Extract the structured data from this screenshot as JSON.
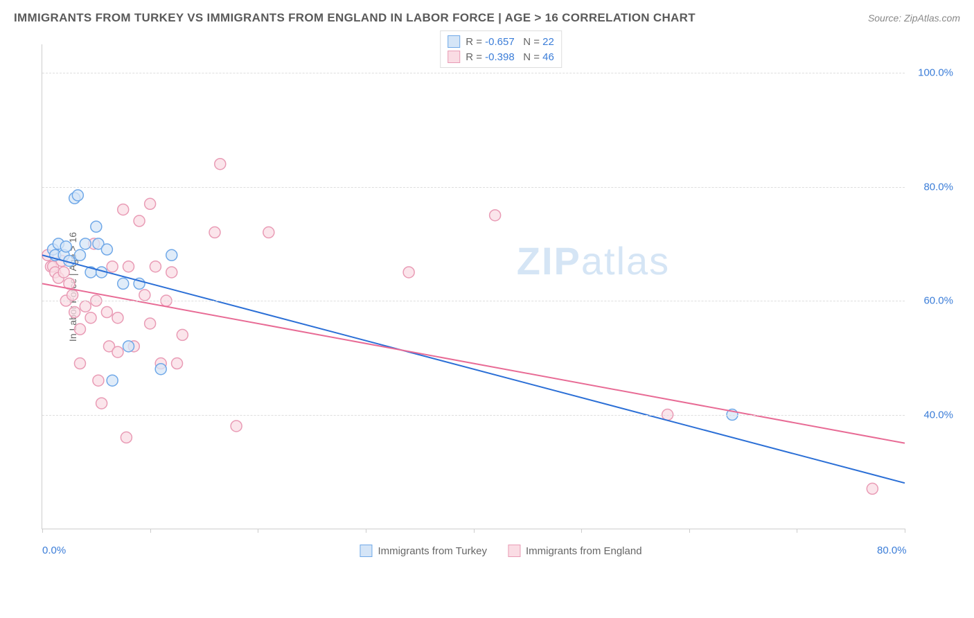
{
  "title": "IMMIGRANTS FROM TURKEY VS IMMIGRANTS FROM ENGLAND IN LABOR FORCE | AGE > 16 CORRELATION CHART",
  "source": "Source: ZipAtlas.com",
  "ylabel": "In Labor Force | Age > 16",
  "watermark_bold": "ZIP",
  "watermark_light": "atlas",
  "xlim": [
    0,
    80
  ],
  "ylim": [
    20,
    105
  ],
  "x_axis_labels": [
    {
      "pos": 0,
      "text": "0.0%"
    },
    {
      "pos": 80,
      "text": "80.0%"
    }
  ],
  "x_ticks": [
    0,
    10,
    20,
    30,
    40,
    50,
    60,
    70,
    80
  ],
  "y_gridlines": [
    40,
    60,
    80,
    100
  ],
  "y_tick_labels": [
    {
      "pos": 40,
      "text": "40.0%"
    },
    {
      "pos": 60,
      "text": "60.0%"
    },
    {
      "pos": 80,
      "text": "80.0%"
    },
    {
      "pos": 100,
      "text": "100.0%"
    }
  ],
  "series": [
    {
      "name": "Immigrants from Turkey",
      "color_fill": "#d5e5f7",
      "color_stroke": "#6fa8e8",
      "line_color": "#2b6fd6",
      "marker_radius": 8,
      "line_width": 2,
      "stats": {
        "R": "-0.657",
        "N": "22"
      },
      "regression": {
        "x1": 0,
        "y1": 68,
        "x2": 80,
        "y2": 28
      },
      "points": [
        {
          "x": 1.0,
          "y": 69
        },
        {
          "x": 1.2,
          "y": 68
        },
        {
          "x": 1.5,
          "y": 70
        },
        {
          "x": 2.0,
          "y": 68
        },
        {
          "x": 2.2,
          "y": 69.5
        },
        {
          "x": 2.5,
          "y": 67
        },
        {
          "x": 3.0,
          "y": 78
        },
        {
          "x": 3.3,
          "y": 78.5
        },
        {
          "x": 3.5,
          "y": 68
        },
        {
          "x": 4.0,
          "y": 70
        },
        {
          "x": 4.5,
          "y": 65
        },
        {
          "x": 5.0,
          "y": 73
        },
        {
          "x": 5.2,
          "y": 70
        },
        {
          "x": 5.5,
          "y": 65
        },
        {
          "x": 6.0,
          "y": 69
        },
        {
          "x": 6.5,
          "y": 46
        },
        {
          "x": 7.5,
          "y": 63
        },
        {
          "x": 8.0,
          "y": 52
        },
        {
          "x": 9.0,
          "y": 63
        },
        {
          "x": 11.0,
          "y": 48
        },
        {
          "x": 12.0,
          "y": 68
        },
        {
          "x": 64.0,
          "y": 40
        }
      ]
    },
    {
      "name": "Immigrants from England",
      "color_fill": "#fadce4",
      "color_stroke": "#e99bb5",
      "line_color": "#e86b95",
      "marker_radius": 8,
      "line_width": 2,
      "stats": {
        "R": "-0.398",
        "N": "46"
      },
      "regression": {
        "x1": 0,
        "y1": 63,
        "x2": 80,
        "y2": 35
      },
      "points": [
        {
          "x": 0.5,
          "y": 68
        },
        {
          "x": 0.8,
          "y": 66
        },
        {
          "x": 1.0,
          "y": 66
        },
        {
          "x": 1.2,
          "y": 65
        },
        {
          "x": 1.5,
          "y": 64
        },
        {
          "x": 1.8,
          "y": 67
        },
        {
          "x": 2.0,
          "y": 65
        },
        {
          "x": 2.2,
          "y": 60
        },
        {
          "x": 2.5,
          "y": 63
        },
        {
          "x": 2.8,
          "y": 61
        },
        {
          "x": 3.0,
          "y": 58
        },
        {
          "x": 3.5,
          "y": 55
        },
        {
          "x": 3.5,
          "y": 49
        },
        {
          "x": 4.0,
          "y": 59
        },
        {
          "x": 4.5,
          "y": 57
        },
        {
          "x": 4.8,
          "y": 70
        },
        {
          "x": 5.0,
          "y": 60
        },
        {
          "x": 5.2,
          "y": 46
        },
        {
          "x": 5.5,
          "y": 42
        },
        {
          "x": 6.0,
          "y": 58
        },
        {
          "x": 6.2,
          "y": 52
        },
        {
          "x": 6.5,
          "y": 66
        },
        {
          "x": 7.0,
          "y": 51
        },
        {
          "x": 7.0,
          "y": 57
        },
        {
          "x": 7.5,
          "y": 76
        },
        {
          "x": 7.8,
          "y": 36
        },
        {
          "x": 8.0,
          "y": 66
        },
        {
          "x": 8.5,
          "y": 52
        },
        {
          "x": 9.0,
          "y": 74
        },
        {
          "x": 9.5,
          "y": 61
        },
        {
          "x": 10.0,
          "y": 77
        },
        {
          "x": 10.0,
          "y": 56
        },
        {
          "x": 10.5,
          "y": 66
        },
        {
          "x": 11.0,
          "y": 49
        },
        {
          "x": 11.5,
          "y": 60
        },
        {
          "x": 12.0,
          "y": 65
        },
        {
          "x": 12.5,
          "y": 49
        },
        {
          "x": 13.0,
          "y": 54
        },
        {
          "x": 16.0,
          "y": 72
        },
        {
          "x": 16.5,
          "y": 84
        },
        {
          "x": 18.0,
          "y": 38
        },
        {
          "x": 21.0,
          "y": 72
        },
        {
          "x": 34.0,
          "y": 65
        },
        {
          "x": 42.0,
          "y": 75
        },
        {
          "x": 58.0,
          "y": 40
        },
        {
          "x": 77.0,
          "y": 27
        }
      ]
    }
  ],
  "legend_r_label": "R =",
  "legend_n_label": "N ="
}
